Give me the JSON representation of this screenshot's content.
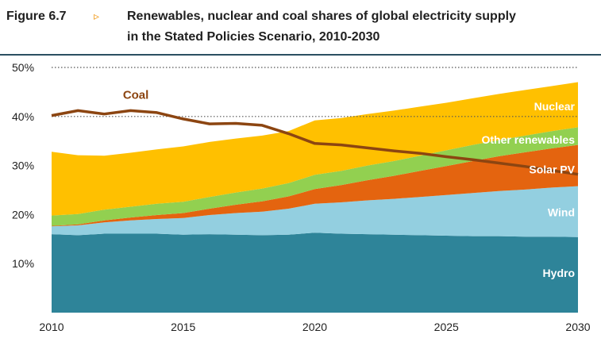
{
  "figure": {
    "label": "Figure 6.7",
    "arrow": "▹",
    "title_line1": "Renewables, nuclear and coal shares of global electricity supply",
    "title_line2": "in the Stated Policies Scenario, 2010-2030"
  },
  "colors": {
    "Hydro": "#2e8499",
    "Wind": "#93cfe0",
    "Solar PV": "#e4640f",
    "Other renewables": "#92d050",
    "Nuclear": "#ffc000",
    "Coal": "#8c4511",
    "gridline": "#555555",
    "rule": "#2b5061"
  },
  "chart_data": {
    "type": "area",
    "stacked": true,
    "x": [
      2010,
      2011,
      2012,
      2013,
      2014,
      2015,
      2016,
      2017,
      2018,
      2019,
      2020,
      2021,
      2022,
      2023,
      2024,
      2025,
      2026,
      2027,
      2028,
      2029,
      2030
    ],
    "series": [
      {
        "name": "Hydro",
        "values": [
          16.0,
          15.8,
          16.1,
          16.1,
          16.1,
          15.9,
          16.0,
          15.9,
          15.8,
          15.9,
          16.3,
          16.1,
          16.0,
          15.9,
          15.8,
          15.7,
          15.6,
          15.6,
          15.5,
          15.5,
          15.4
        ]
      },
      {
        "name": "Wind",
        "values": [
          1.6,
          2.0,
          2.3,
          2.7,
          3.0,
          3.4,
          3.9,
          4.4,
          4.8,
          5.3,
          5.9,
          6.4,
          6.9,
          7.3,
          7.8,
          8.3,
          8.8,
          9.2,
          9.6,
          10.0,
          10.4
        ]
      },
      {
        "name": "Solar PV",
        "values": [
          0.1,
          0.2,
          0.4,
          0.6,
          0.8,
          1.0,
          1.3,
          1.7,
          2.1,
          2.5,
          3.0,
          3.5,
          4.1,
          4.7,
          5.3,
          5.9,
          6.5,
          7.1,
          7.6,
          8.0,
          8.4
        ]
      },
      {
        "name": "Other renewables",
        "values": [
          2.1,
          2.1,
          2.2,
          2.2,
          2.3,
          2.3,
          2.4,
          2.5,
          2.6,
          2.7,
          2.9,
          2.9,
          3.0,
          3.0,
          3.1,
          3.2,
          3.3,
          3.3,
          3.4,
          3.5,
          3.6
        ]
      },
      {
        "name": "Nuclear",
        "values": [
          13.0,
          12.0,
          11.0,
          11.0,
          11.1,
          11.3,
          11.2,
          11.0,
          10.8,
          10.6,
          11.1,
          10.8,
          10.5,
          10.3,
          10.0,
          9.7,
          9.5,
          9.4,
          9.3,
          9.2,
          9.2
        ]
      }
    ],
    "line_series": [
      {
        "name": "Coal",
        "values": [
          40.2,
          41.2,
          40.5,
          41.2,
          40.8,
          39.5,
          38.5,
          38.6,
          38.2,
          36.5,
          34.5,
          34.2,
          33.6,
          33.0,
          32.5,
          31.8,
          31.2,
          30.5,
          29.8,
          29.0,
          28.2
        ]
      }
    ],
    "xticks": [
      "2010",
      "2015",
      "2020",
      "2025",
      "2030"
    ],
    "yticks": [
      "10%",
      "20%",
      "30%",
      "40%",
      "50%"
    ],
    "ylim": [
      0,
      50
    ],
    "xlim": [
      2010,
      2030
    ],
    "dotted_gridlines_at": [
      40,
      50
    ],
    "labels": [
      "Nuclear",
      "Other renewables",
      "Solar PV",
      "Wind",
      "Hydro",
      "Coal"
    ]
  }
}
